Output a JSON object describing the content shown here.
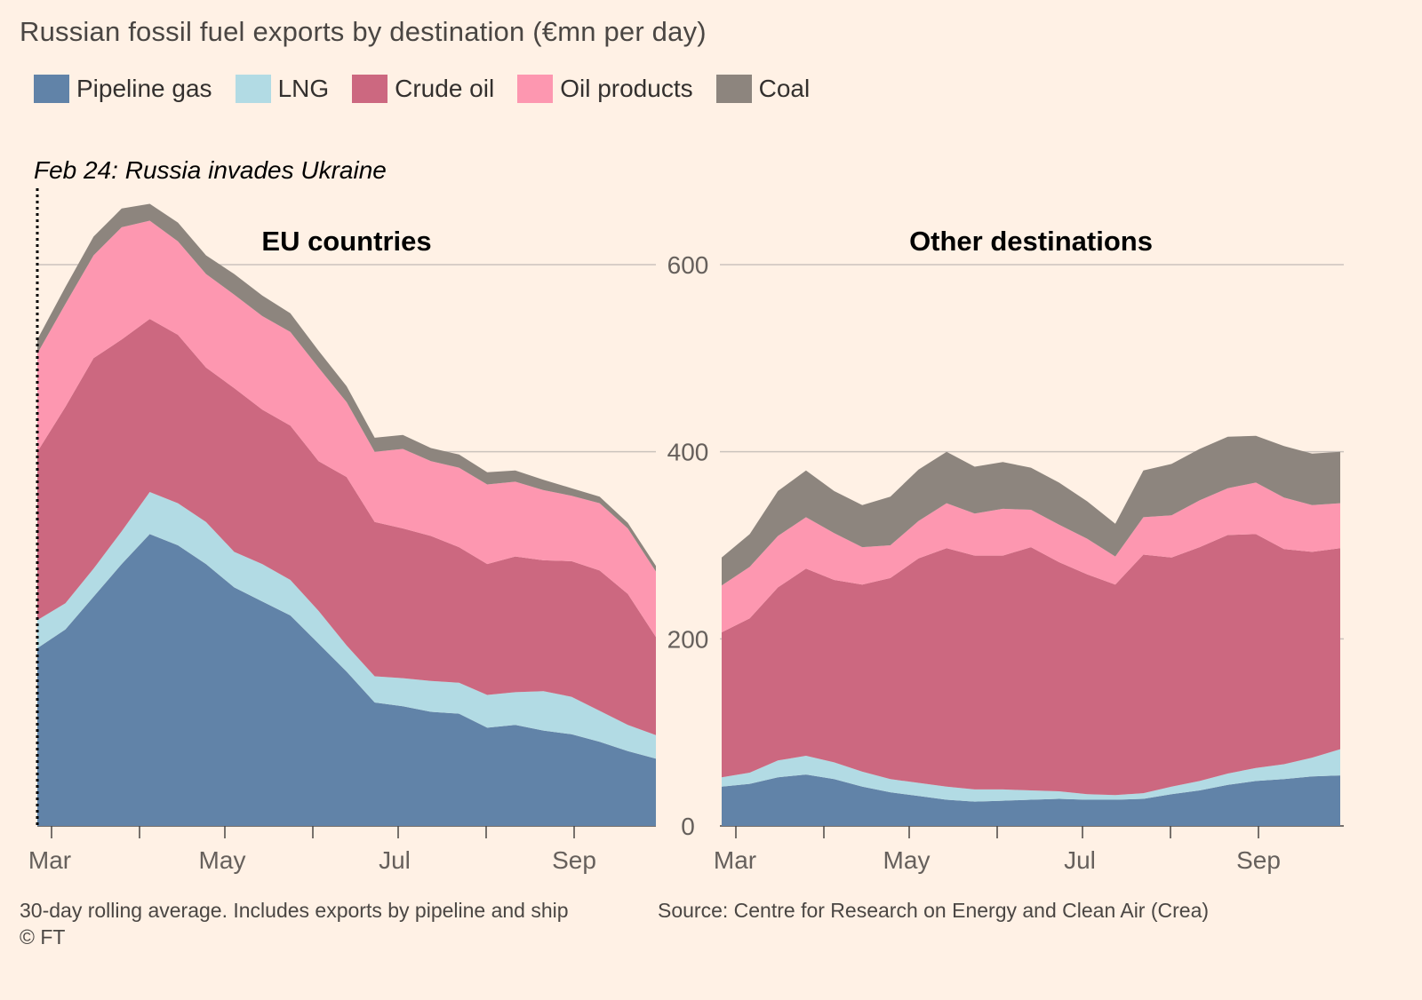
{
  "header": {
    "title": "Russian fossil fuel exports by destination (€mn per day)"
  },
  "legend": [
    {
      "label": "Pipeline gas",
      "color": "#6183a8"
    },
    {
      "label": "LNG",
      "color": "#b2dbe4"
    },
    {
      "label": "Crude oil",
      "color": "#cc6880"
    },
    {
      "label": "Oil products",
      "color": "#fd97b0"
    },
    {
      "label": "Coal",
      "color": "#8d857e"
    }
  ],
  "annotation": {
    "invasion": "Feb 24: Russia invades Ukraine"
  },
  "footer": {
    "note": "30-day rolling average. Includes exports by pipeline and ship",
    "source": "Source: Centre for Research on Energy and Clean Air (Crea)",
    "credit": "© FT"
  },
  "chart_data": [
    {
      "type": "area",
      "title": "EU countries",
      "stacked": true,
      "ylim": [
        0,
        600
      ],
      "yticks": [
        0,
        200,
        400,
        600
      ],
      "x_tick_labels": [
        "Mar",
        "May",
        "Jul",
        "Sep"
      ],
      "x": [
        "Feb 24",
        "Mar 5",
        "Mar 15",
        "Mar 25",
        "Apr 5",
        "Apr 15",
        "Apr 25",
        "May 5",
        "May 15",
        "May 25",
        "Jun 5",
        "Jun 15",
        "Jun 25",
        "Jul 5",
        "Jul 15",
        "Jul 25",
        "Aug 5",
        "Aug 15",
        "Aug 25",
        "Sep 5",
        "Sep 15",
        "Sep 25",
        "Oct 4"
      ],
      "series": [
        {
          "name": "Pipeline gas",
          "color": "#6183a8",
          "values": [
            190,
            210,
            245,
            280,
            312,
            300,
            280,
            255,
            240,
            225,
            195,
            165,
            132,
            128,
            122,
            120,
            105,
            108,
            102,
            98,
            90,
            80,
            72
          ]
        },
        {
          "name": "LNG",
          "color": "#b2dbe4",
          "values": [
            30,
            28,
            30,
            35,
            45,
            45,
            45,
            38,
            40,
            38,
            35,
            28,
            28,
            30,
            33,
            33,
            35,
            35,
            42,
            40,
            33,
            28,
            25
          ]
        },
        {
          "name": "Crude oil",
          "color": "#cc6880",
          "values": [
            180,
            210,
            225,
            205,
            185,
            180,
            165,
            175,
            165,
            165,
            160,
            180,
            165,
            160,
            155,
            145,
            140,
            145,
            140,
            145,
            150,
            140,
            105
          ]
        },
        {
          "name": "Oil products",
          "color": "#fd97b0",
          "values": [
            105,
            110,
            110,
            120,
            105,
            100,
            100,
            100,
            100,
            100,
            100,
            80,
            75,
            85,
            80,
            85,
            85,
            80,
            75,
            70,
            72,
            70,
            70
          ]
        },
        {
          "name": "Coal",
          "color": "#8d857e",
          "values": [
            15,
            18,
            20,
            20,
            18,
            20,
            20,
            22,
            22,
            20,
            18,
            17,
            15,
            15,
            14,
            14,
            13,
            12,
            11,
            8,
            7,
            6,
            6
          ]
        }
      ]
    },
    {
      "type": "area",
      "title": "Other destinations",
      "stacked": true,
      "ylim": [
        0,
        600
      ],
      "yticks": [
        0,
        200,
        400,
        600
      ],
      "x_tick_labels": [
        "Mar",
        "May",
        "Jul",
        "Sep"
      ],
      "x": [
        "Feb 24",
        "Mar 5",
        "Mar 15",
        "Mar 25",
        "Apr 5",
        "Apr 15",
        "Apr 25",
        "May 5",
        "May 15",
        "May 25",
        "Jun 5",
        "Jun 15",
        "Jun 25",
        "Jul 5",
        "Jul 15",
        "Jul 25",
        "Aug 5",
        "Aug 15",
        "Aug 25",
        "Sep 5",
        "Sep 15",
        "Sep 25",
        "Oct 4"
      ],
      "series": [
        {
          "name": "Pipeline gas",
          "color": "#6183a8",
          "values": [
            42,
            45,
            52,
            55,
            50,
            42,
            36,
            32,
            28,
            26,
            27,
            28,
            29,
            28,
            28,
            29,
            34,
            38,
            44,
            48,
            50,
            53,
            54
          ]
        },
        {
          "name": "LNG",
          "color": "#b2dbe4",
          "values": [
            10,
            12,
            18,
            20,
            18,
            16,
            14,
            14,
            14,
            13,
            12,
            10,
            8,
            6,
            5,
            6,
            8,
            10,
            12,
            14,
            16,
            20,
            28
          ]
        },
        {
          "name": "Crude oil",
          "color": "#cc6880",
          "values": [
            155,
            165,
            185,
            200,
            195,
            200,
            215,
            240,
            255,
            250,
            250,
            260,
            245,
            235,
            225,
            255,
            245,
            250,
            255,
            250,
            230,
            220,
            215
          ]
        },
        {
          "name": "Oil products",
          "color": "#fd97b0",
          "values": [
            50,
            55,
            55,
            55,
            50,
            40,
            35,
            40,
            48,
            45,
            50,
            40,
            40,
            38,
            30,
            40,
            45,
            50,
            50,
            55,
            55,
            50,
            48
          ]
        },
        {
          "name": "Coal",
          "color": "#8d857e",
          "values": [
            30,
            35,
            48,
            50,
            45,
            45,
            52,
            55,
            55,
            50,
            50,
            45,
            45,
            40,
            35,
            50,
            55,
            55,
            55,
            50,
            55,
            55,
            55
          ]
        }
      ]
    }
  ]
}
